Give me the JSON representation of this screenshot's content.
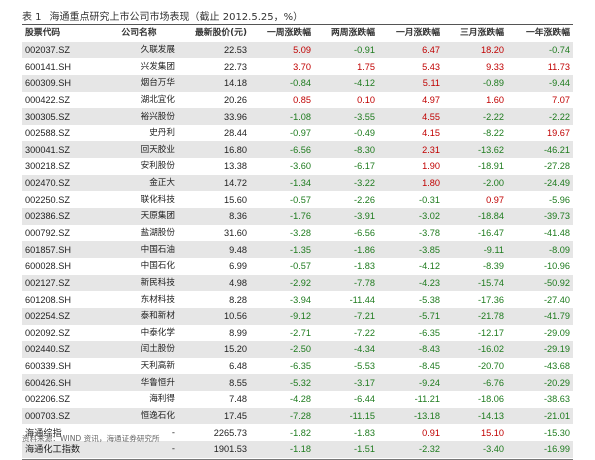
{
  "title": {
    "num": "表 1",
    "text": "海通重点研究上市公司市场表现（截止 2012.5.25，%）"
  },
  "headers": [
    "股票代码",
    "公司名称",
    "最新股价(元)",
    "一周涨跌幅",
    "两周涨跌幅",
    "一月涨跌幅",
    "三月涨跌幅",
    "一年涨跌幅"
  ],
  "rows": [
    [
      "002037.SZ",
      "久联发展",
      "22.53",
      "5.09",
      "-0.91",
      "6.47",
      "18.20",
      "-0.74"
    ],
    [
      "600141.SH",
      "兴发集团",
      "22.73",
      "3.70",
      "1.75",
      "5.43",
      "9.33",
      "11.73"
    ],
    [
      "600309.SH",
      "烟台万华",
      "14.18",
      "-0.84",
      "-4.12",
      "5.11",
      "-0.89",
      "-9.44"
    ],
    [
      "000422.SZ",
      "湖北宜化",
      "20.26",
      "0.85",
      "0.10",
      "4.97",
      "1.60",
      "7.07"
    ],
    [
      "300305.SZ",
      "裕兴股份",
      "33.96",
      "-1.08",
      "-3.55",
      "4.55",
      "-2.22",
      "-2.22"
    ],
    [
      "002588.SZ",
      "史丹利",
      "28.44",
      "-0.97",
      "-0.49",
      "4.15",
      "-8.22",
      "19.67"
    ],
    [
      "300041.SZ",
      "回天胶业",
      "16.80",
      "-6.56",
      "-8.30",
      "2.31",
      "-13.62",
      "-46.21"
    ],
    [
      "300218.SZ",
      "安利股份",
      "13.38",
      "-3.60",
      "-6.17",
      "1.90",
      "-18.91",
      "-27.28"
    ],
    [
      "002470.SZ",
      "金正大",
      "14.72",
      "-1.34",
      "-3.22",
      "1.80",
      "-2.00",
      "-24.49"
    ],
    [
      "002250.SZ",
      "联化科技",
      "15.60",
      "-0.57",
      "-2.26",
      "-0.31",
      "0.97",
      "-5.96"
    ],
    [
      "002386.SZ",
      "天原集团",
      "8.36",
      "-1.76",
      "-3.91",
      "-3.02",
      "-18.84",
      "-39.73"
    ],
    [
      "000792.SZ",
      "盐湖股份",
      "31.60",
      "-3.28",
      "-6.56",
      "-3.78",
      "-16.47",
      "-41.48"
    ],
    [
      "601857.SH",
      "中国石油",
      "9.48",
      "-1.35",
      "-1.86",
      "-3.85",
      "-9.11",
      "-8.09"
    ],
    [
      "600028.SH",
      "中国石化",
      "6.99",
      "-0.57",
      "-1.83",
      "-4.12",
      "-8.39",
      "-10.96"
    ],
    [
      "002127.SZ",
      "新民科技",
      "4.98",
      "-2.92",
      "-7.78",
      "-4.23",
      "-15.74",
      "-50.92"
    ],
    [
      "601208.SH",
      "东材科技",
      "8.28",
      "-3.94",
      "-11.44",
      "-5.38",
      "-17.36",
      "-27.40"
    ],
    [
      "002254.SZ",
      "泰和新材",
      "10.56",
      "-9.12",
      "-7.21",
      "-5.71",
      "-21.78",
      "-41.79"
    ],
    [
      "002092.SZ",
      "中泰化学",
      "8.99",
      "-2.71",
      "-7.22",
      "-6.35",
      "-12.17",
      "-29.09"
    ],
    [
      "002440.SZ",
      "闰土股份",
      "15.20",
      "-2.50",
      "-4.34",
      "-8.43",
      "-16.02",
      "-29.19"
    ],
    [
      "600339.SH",
      "天利高新",
      "6.48",
      "-6.35",
      "-5.53",
      "-8.45",
      "-20.70",
      "-43.68"
    ],
    [
      "600426.SH",
      "华鲁恒升",
      "8.55",
      "-5.32",
      "-3.17",
      "-9.24",
      "-6.76",
      "-20.29"
    ],
    [
      "002206.SZ",
      "海利得",
      "7.48",
      "-4.28",
      "-6.44",
      "-11.21",
      "-18.06",
      "-38.63"
    ],
    [
      "000703.SZ",
      "恒逸石化",
      "17.45",
      "-7.28",
      "-11.15",
      "-13.18",
      "-14.13",
      "-21.01"
    ],
    [
      "海通综指",
      "-",
      "2265.73",
      "-1.82",
      "-1.83",
      "0.91",
      "15.10",
      "-15.30"
    ],
    [
      "海通化工指数",
      "-",
      "1901.53",
      "-1.18",
      "-1.51",
      "-2.32",
      "-3.40",
      "-16.99"
    ]
  ],
  "colors": {
    "up": "#c00000",
    "down": "#1e7b1e",
    "stripe": "#e6e6e6"
  },
  "source": "资料来源：WIND 资讯，海通证券研究所"
}
